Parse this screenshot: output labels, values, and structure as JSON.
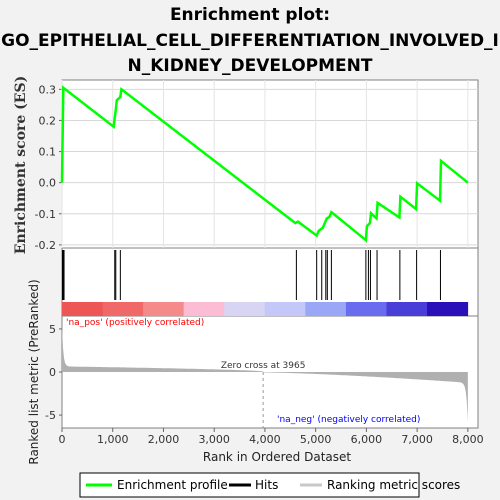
{
  "title_lines": [
    "Enrichment plot:",
    "GO_EPITHELIAL_CELL_DIFFERENTIATION_INVOLVED_I",
    "N_KIDNEY_DEVELOPMENT"
  ],
  "colors": {
    "enrichment_line": "#00ff00",
    "hits": "#000000",
    "pos_label": "#ff0000",
    "neg_label": "#0000ff",
    "metric_fill": "#b0b0b0",
    "zero_line": "#b0b0b0"
  },
  "chart_data": {
    "type": "line",
    "ylabel_top": "Enrichment score (ES)",
    "ylabel_bottom": "Ranked list metric (PreRanked)",
    "xlabel": "Rank in Ordered Dataset",
    "x_ticks": [
      "0",
      "1,000",
      "2,000",
      "3,000",
      "4,000",
      "5,000",
      "6,000",
      "7,000",
      "8,000"
    ],
    "x_tick_values": [
      0,
      1000,
      2000,
      3000,
      4000,
      5000,
      6000,
      7000,
      8000
    ],
    "xlim": [
      0,
      8200
    ],
    "es_yticks": [
      "0.3",
      "0.2",
      "0.1",
      "0.0",
      "-0.1",
      "-0.2"
    ],
    "es_ytick_values": [
      0.3,
      0.2,
      0.1,
      0.0,
      -0.1,
      -0.2
    ],
    "es_ylim": [
      -0.21,
      0.33
    ],
    "metric_yticks": [
      "5",
      "0",
      "-5"
    ],
    "metric_ytick_values": [
      5,
      0,
      -5
    ],
    "metric_ylim": [
      -6.5,
      6.5
    ],
    "enrichment_profile": {
      "x": [
        0,
        25,
        1020,
        1040,
        1060,
        1080,
        1150,
        1170,
        4600,
        4650,
        5020,
        5060,
        5100,
        5140,
        5180,
        5220,
        5270,
        5310,
        5990,
        6010,
        6070,
        6090,
        6200,
        6220,
        6650,
        6670,
        6980,
        7000,
        7450,
        7470,
        8000
      ],
      "y": [
        0.0,
        0.305,
        0.18,
        0.21,
        0.235,
        0.265,
        0.275,
        0.3,
        -0.13,
        -0.125,
        -0.17,
        -0.155,
        -0.15,
        -0.145,
        -0.13,
        -0.115,
        -0.11,
        -0.095,
        -0.185,
        -0.14,
        -0.13,
        -0.098,
        -0.115,
        -0.065,
        -0.112,
        -0.045,
        -0.085,
        -0.002,
        -0.058,
        0.07,
        0.0
      ]
    },
    "hits": [
      10,
      25,
      40,
      1040,
      1060,
      1150,
      4620,
      5020,
      5120,
      5200,
      5230,
      5310,
      5990,
      6040,
      6080,
      6210,
      6660,
      6990,
      7460
    ],
    "zero_cross": {
      "rank": 3965,
      "label": "Zero cross at 3965"
    },
    "pos_label": "'na_pos' (positively correlated)",
    "neg_label": "'na_neg' (negatively correlated)",
    "heatmap_colors": [
      "#ee5555",
      "#f06868",
      "#f58a8a",
      "#fbbcd4",
      "#d8d4f4",
      "#c4c8f8",
      "#9aa6f6",
      "#6a6cf0",
      "#4a3ed8",
      "#2a10b8"
    ],
    "legend": [
      {
        "label": "Enrichment profile",
        "color": "#00ff00",
        "kind": "line"
      },
      {
        "label": "Hits",
        "color": "#000000",
        "kind": "line"
      },
      {
        "label": "Ranking metric scores",
        "color": "#c8c8c8",
        "kind": "line"
      }
    ]
  }
}
